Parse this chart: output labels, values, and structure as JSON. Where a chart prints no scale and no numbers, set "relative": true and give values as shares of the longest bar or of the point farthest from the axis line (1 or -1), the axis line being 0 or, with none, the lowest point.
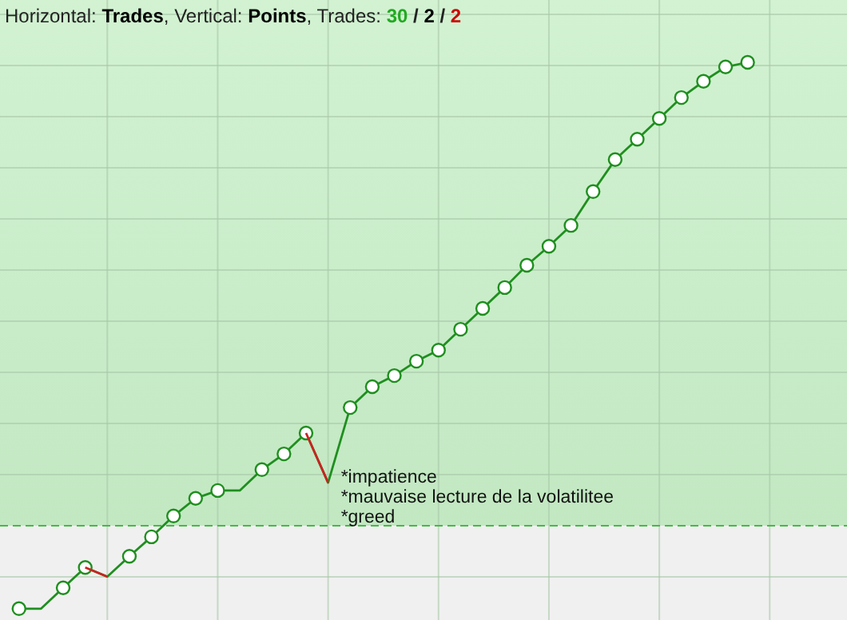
{
  "chart_data": {
    "type": "line",
    "title": "Horizontal: Trades, Vertical: Points, Trades: 30 / 2 / 2",
    "relative": true,
    "grid": true,
    "categories": [
      null,
      null,
      null,
      null,
      null,
      null,
      null,
      null,
      null,
      null,
      null,
      null,
      null,
      null,
      null,
      null,
      null,
      null,
      null,
      null,
      null,
      null,
      null,
      null,
      null,
      null,
      null,
      null,
      null,
      null,
      null,
      null,
      null,
      null
    ],
    "series": [
      {
        "color": "#1f8f1f",
        "marker": "circle",
        "values": [
          -0.179,
          -0.179,
          -0.134,
          -0.09,
          -0.11,
          -0.066,
          -0.024,
          0.021,
          0.059,
          0.076,
          0.076,
          0.121,
          0.155,
          0.2,
          0.093,
          0.255,
          0.3,
          0.324,
          0.355,
          0.379,
          0.424,
          0.469,
          0.514,
          0.562,
          0.603,
          0.648,
          0.721,
          0.79,
          0.834,
          0.879,
          0.924,
          0.959,
          0.99,
          1
        ]
      },
      {
        "color": "#cc2222",
        "marker": "none",
        "values": [
          null,
          null,
          null,
          -0.09,
          -0.11,
          null,
          null,
          null,
          null,
          null,
          null,
          null,
          null,
          0.2,
          0.093,
          null,
          null,
          null,
          null,
          null,
          null,
          null,
          null,
          null,
          null,
          null,
          null,
          null,
          null,
          null,
          null,
          null,
          null,
          null
        ]
      }
    ],
    "ref_lines": [
      {
        "axis": "y",
        "value": 0,
        "color": "#44bb44",
        "line_style": "dashed"
      }
    ],
    "annotations": [
      "*impatience\n*mauvaise lecture de la volatilitee\n*greed"
    ]
  }
}
